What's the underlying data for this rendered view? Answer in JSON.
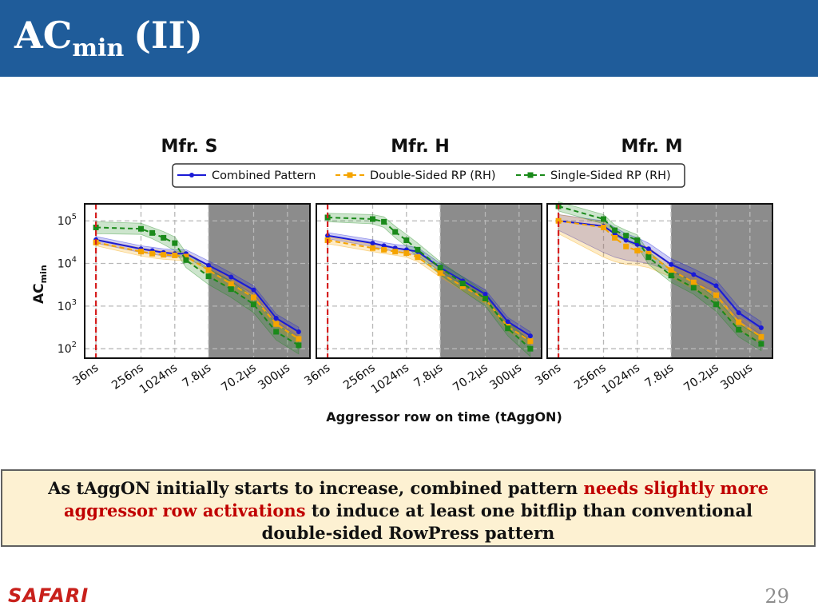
{
  "slide": {
    "title_main": "AC",
    "title_sub": "min",
    "title_rest": "(II)",
    "callout_part1": "As tAggON initially starts to increase, combined pattern ",
    "callout_highlight": "needs slightly more aggressor row activations",
    "callout_part2": " to induce at least one bitflip than conventional double-sided RowPress pattern",
    "footer_logo": "SAFARI",
    "page_number": "29"
  },
  "colors": {
    "title_bar": "#1f5c9a",
    "combined": "#1a1ad6",
    "double_sided": "#f5a400",
    "single_sided": "#1a8a1a",
    "threshold": "#d62020",
    "highlight_red": "#c00000"
  },
  "chart_data": {
    "type": "line",
    "xlabel": "Aggressor row on time (tAggON)",
    "ylabel": "AC",
    "ylabel_sub": "min",
    "y_scale": "log",
    "ylim": [
      60,
      250000
    ],
    "yticks": [
      {
        "base": "10",
        "exp": "2"
      },
      {
        "base": "10",
        "exp": "3"
      },
      {
        "base": "10",
        "exp": "4"
      },
      {
        "base": "10",
        "exp": "5"
      }
    ],
    "tick_labels": [
      "36ns",
      "256ns",
      "1024ns",
      "7.8μs",
      "70.2μs",
      "300μs"
    ],
    "tick_positions": [
      0,
      2,
      3.5,
      5,
      7,
      8.5
    ],
    "x_positions": [
      0,
      2,
      2.5,
      3,
      3.5,
      4,
      5,
      6,
      7,
      8,
      9
    ],
    "x_range": [
      -0.5,
      9.5
    ],
    "shaded_from": 5,
    "threshold_x": 0,
    "legend": [
      "Combined Pattern",
      "Double-Sided RP (RH)",
      "Single-Sided RP (RH)"
    ],
    "legend_position": "top-center",
    "panels": [
      {
        "title": "Mfr. S",
        "series": [
          {
            "name": "Combined Pattern",
            "values": [
              36000,
              22000,
              20000,
              18000,
              17000,
              17000,
              9000,
              4800,
              2400,
              520,
              250
            ],
            "band_low": [
              30000,
              18000,
              16500,
              15000,
              14000,
              14000,
              7000,
              3800,
              1900,
              420,
              190
            ],
            "band_high": [
              43000,
              26000,
              24000,
              22000,
              21000,
              21000,
              11500,
              6000,
              3000,
              650,
              320
            ]
          },
          {
            "name": "Double-Sided RP (RH)",
            "values": [
              31000,
              19000,
              17000,
              16000,
              15500,
              14500,
              7000,
              3300,
              1600,
              380,
              170
            ],
            "band_low": [
              26000,
              15000,
              13500,
              12500,
              12000,
              11500,
              5500,
              2600,
              1250,
              290,
              130
            ],
            "band_high": [
              37000,
              23000,
              21000,
              20000,
              19500,
              18500,
              9000,
              4300,
              2100,
              490,
              220
            ]
          },
          {
            "name": "Single-Sided RP (RH)",
            "values": [
              70000,
              65000,
              52000,
              40000,
              30000,
              12000,
              5000,
              2500,
              1100,
              250,
              120
            ],
            "band_low": [
              50000,
              48000,
              38000,
              28000,
              20000,
              8000,
              3200,
              1600,
              700,
              160,
              75
            ],
            "band_high": [
              95000,
              88000,
              70000,
              56000,
              42000,
              18000,
              7500,
              3800,
              1600,
              380,
              180
            ]
          }
        ]
      },
      {
        "title": "Mfr. H",
        "series": [
          {
            "name": "Combined Pattern",
            "values": [
              45000,
              30000,
              26000,
              23000,
              21000,
              19000,
              8000,
              3900,
              1900,
              430,
              200
            ],
            "band_low": [
              38000,
              25000,
              21500,
              19000,
              17500,
              15500,
              6500,
              3100,
              1500,
              340,
              160
            ],
            "band_high": [
              53000,
              36000,
              31000,
              28000,
              26000,
              23500,
              10000,
              4900,
              2400,
              540,
              250
            ]
          },
          {
            "name": "Double-Sided RP (RH)",
            "values": [
              35000,
              23000,
              21000,
              19000,
              17500,
              14000,
              6000,
              2900,
              1450,
              330,
              150
            ],
            "band_low": [
              29000,
              19000,
              17000,
              15500,
              14000,
              11000,
              4800,
              2300,
              1150,
              260,
              120
            ],
            "band_high": [
              42000,
              28000,
              26000,
              23500,
              22000,
              18000,
              7500,
              3700,
              1850,
              420,
              190
            ]
          },
          {
            "name": "Single-Sided RP (RH)",
            "values": [
              120000,
              110000,
              95000,
              55000,
              35000,
              21000,
              8000,
              3400,
              1500,
              300,
              100
            ],
            "band_low": [
              95000,
              85000,
              70000,
              40000,
              25000,
              14000,
              5500,
              2300,
              1000,
              200,
              65
            ],
            "band_high": [
              150000,
              140000,
              125000,
              75000,
              48000,
              30000,
              11000,
              4800,
              2100,
              430,
              150
            ]
          }
        ]
      },
      {
        "title": "Mfr. M",
        "series": [
          {
            "name": "Combined Pattern",
            "values": [
              100000,
              75000,
              50000,
              35000,
              28000,
              22000,
              9500,
              5500,
              3000,
              700,
              310
            ],
            "band_low": [
              60000,
              18000,
              14000,
              12000,
              11000,
              10000,
              6500,
              3800,
              2100,
              480,
              210
            ],
            "band_high": [
              140000,
              100000,
              70000,
              50000,
              40000,
              30000,
              13000,
              7500,
              4100,
              950,
              430
            ]
          },
          {
            "name": "Double-Sided RP (RH)",
            "values": [
              100000,
              70000,
              40000,
              25000,
              20000,
              17000,
              7000,
              3600,
              1800,
              420,
              190
            ],
            "band_low": [
              50000,
              14000,
              11000,
              9500,
              9000,
              8000,
              4800,
              2500,
              1250,
              290,
              130
            ],
            "band_high": [
              140000,
              95000,
              60000,
              36000,
              29000,
              24000,
              9500,
              5000,
              2500,
              580,
              260
            ]
          },
          {
            "name": "Single-Sided RP (RH)",
            "values": [
              220000,
              110000,
              60000,
              45000,
              35000,
              14000,
              5200,
              2700,
              1100,
              280,
              130
            ],
            "band_low": [
              170000,
              85000,
              45000,
              33000,
              25000,
              9500,
              3600,
              1900,
              750,
              190,
              90
            ],
            "band_high": [
              280000,
              140000,
              80000,
              60000,
              47000,
              19000,
              7000,
              3700,
              1500,
              390,
              180
            ]
          }
        ]
      }
    ]
  }
}
